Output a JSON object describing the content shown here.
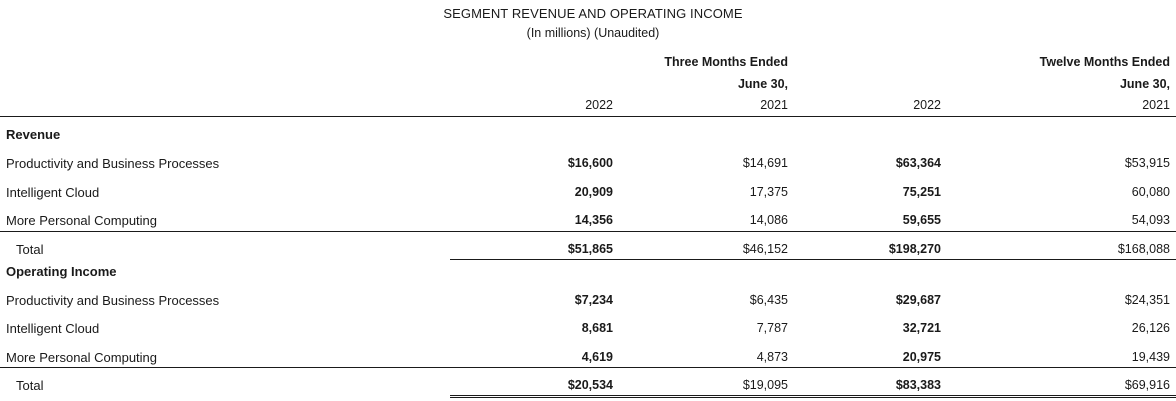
{
  "title": "SEGMENT REVENUE AND OPERATING INCOME",
  "subtitle": "(In millions) (Unaudited)",
  "header": {
    "three_months_line1": "Three Months Ended",
    "three_months_line2": "June 30,",
    "twelve_months_line1": "Twelve Months Ended",
    "twelve_months_line2": "June 30,",
    "years": [
      "2022",
      "2021",
      "2022",
      "2021"
    ]
  },
  "revenue": {
    "label": "Revenue",
    "rows": [
      {
        "label": "Productivity and Business Processes",
        "values": [
          "$16,600",
          "$14,691",
          "$63,364",
          "$53,915"
        ]
      },
      {
        "label": "Intelligent Cloud",
        "values": [
          "20,909",
          "17,375",
          "75,251",
          "60,080"
        ]
      },
      {
        "label": "More Personal Computing",
        "values": [
          "14,356",
          "14,086",
          "59,655",
          "54,093"
        ]
      }
    ],
    "total": {
      "label": "Total",
      "values": [
        "$51,865",
        "$46,152",
        "$198,270",
        "$168,088"
      ]
    }
  },
  "operating_income": {
    "label": "Operating Income",
    "rows": [
      {
        "label": "Productivity and Business Processes",
        "values": [
          "$7,234",
          "$6,435",
          "$29,687",
          "$24,351"
        ]
      },
      {
        "label": "Intelligent Cloud",
        "values": [
          "8,681",
          "7,787",
          "32,721",
          "26,126"
        ]
      },
      {
        "label": "More Personal Computing",
        "values": [
          "4,619",
          "4,873",
          "20,975",
          "19,439"
        ]
      }
    ],
    "total": {
      "label": "Total",
      "values": [
        "$20,534",
        "$19,095",
        "$83,383",
        "$69,916"
      ]
    }
  }
}
